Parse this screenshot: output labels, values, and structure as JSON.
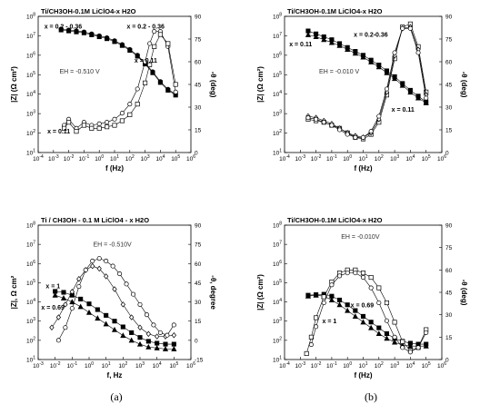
{
  "panel_labels": {
    "a": "(a)",
    "b": "(b)"
  },
  "chart_data": [
    {
      "id": "a-top",
      "type": "line",
      "title": "Ti/CH3OH-0.1M LiClO4-x H2O",
      "xlabel": "f (Hz)",
      "ylabel_left": "|Z| (Ω cm²)",
      "ylabel_right": "-θ (deg)",
      "x_scale": "log",
      "xlim_exp": [
        -4,
        6
      ],
      "ylim_left_exp": [
        1,
        8
      ],
      "ylim_right": [
        0,
        90
      ],
      "x_ticks": [
        "10-4",
        "10-3",
        "10-2",
        "10-1",
        "100",
        "101",
        "102",
        "103",
        "104",
        "105",
        "106"
      ],
      "y_left_ticks": [
        "101",
        "102",
        "103",
        "104",
        "105",
        "106",
        "107",
        "108"
      ],
      "y_right_ticks": [
        "0",
        "15",
        "30",
        "45",
        "60",
        "75",
        "90"
      ],
      "annotations": [
        "x = 0.2 - 0.36",
        "x = 0.2 - 0.36",
        "x = 0.11",
        "x = 0.11",
        "EH = -0.510 V"
      ],
      "series": [
        {
          "axis": "left",
          "marker": "square-filled",
          "x_exp": [
            -2.5,
            -2,
            -1.5,
            -1,
            -0.5,
            0,
            0.5,
            1,
            1.5,
            2,
            2.5,
            3,
            3.5,
            4,
            4.5,
            5
          ],
          "y_exp": [
            7.3,
            7.25,
            7.2,
            7.15,
            7.05,
            6.95,
            6.85,
            6.7,
            6.5,
            6.25,
            5.95,
            5.55,
            5.1,
            4.6,
            4.2,
            3.95
          ]
        },
        {
          "axis": "left",
          "marker": "circle-filled",
          "x_exp": [
            -2.5,
            -2,
            -1.5,
            -1,
            -0.5,
            0,
            0.5,
            1,
            1.5,
            2,
            2.5,
            3,
            3.5,
            4,
            4.5,
            5
          ],
          "y_exp": [
            7.35,
            7.3,
            7.25,
            7.2,
            7.1,
            7.0,
            6.9,
            6.75,
            6.55,
            6.3,
            6.0,
            5.6,
            5.15,
            4.65,
            4.25,
            4.0
          ]
        },
        {
          "axis": "right",
          "marker": "circle-open",
          "x": [
            -2.3,
            -2,
            -1.5,
            -1,
            -0.5,
            0,
            0.5,
            1,
            1.5,
            2,
            2.5,
            3,
            3.3,
            3.6,
            4,
            4.5,
            5
          ],
          "y": [
            18,
            22,
            16,
            20,
            18,
            19,
            20,
            22,
            26,
            32,
            42,
            60,
            72,
            80,
            80,
            70,
            40
          ]
        },
        {
          "axis": "right",
          "marker": "square-open",
          "x": [
            -2.3,
            -2,
            -1.5,
            -1,
            -0.5,
            0,
            0.5,
            1,
            1.5,
            2,
            2.5,
            3,
            3.3,
            3.6,
            4,
            4.5,
            5
          ],
          "y": [
            16,
            20,
            14,
            18,
            16,
            16,
            17,
            18,
            21,
            25,
            32,
            46,
            58,
            70,
            78,
            72,
            45
          ]
        }
      ]
    },
    {
      "id": "b-top",
      "type": "line",
      "title": "Ti/CH3OH-0.1M LiClO4-x H2O",
      "xlabel": "f (Hz)",
      "ylabel_left": "|Z| (Ω cm²)",
      "ylabel_right": "-θ (deg)",
      "x_scale": "log",
      "xlim_exp": [
        -4,
        6
      ],
      "ylim_left_exp": [
        1,
        8
      ],
      "ylim_right": [
        0,
        90
      ],
      "x_ticks": [
        "10-4",
        "10-3",
        "10-2",
        "10-1",
        "100",
        "101",
        "102",
        "103",
        "104",
        "105",
        "106"
      ],
      "y_left_ticks": [
        "101",
        "102",
        "103",
        "104",
        "105",
        "106",
        "107",
        "108"
      ],
      "y_right_ticks": [
        "0",
        "15",
        "30",
        "45",
        "60",
        "75",
        "90"
      ],
      "annotations": [
        "x = 0.2-0.36",
        "x = 0.11",
        "x = 0.11",
        "EH = -0.010 V"
      ],
      "series": [
        {
          "axis": "left",
          "marker": "triangle-filled",
          "x_exp": [
            -2.5,
            -2,
            -1.5,
            -1,
            -0.5,
            0,
            0.5,
            1,
            1.5,
            2,
            2.5,
            3,
            3.5,
            4,
            4.5,
            5
          ],
          "y_exp": [
            7.05,
            6.95,
            6.8,
            6.65,
            6.5,
            6.3,
            6.1,
            5.9,
            5.65,
            5.4,
            5.1,
            4.8,
            4.45,
            4.1,
            3.8,
            3.55
          ]
        },
        {
          "axis": "left",
          "marker": "square-filled",
          "x_exp": [
            -2.5,
            -2,
            -1.5,
            -1,
            -0.5,
            0,
            0.5,
            1,
            1.5,
            2,
            2.5,
            3,
            3.5,
            4,
            4.5,
            5
          ],
          "y_exp": [
            7.25,
            7.1,
            6.95,
            6.8,
            6.6,
            6.4,
            6.2,
            6.0,
            5.75,
            5.5,
            5.2,
            4.9,
            4.55,
            4.2,
            3.9,
            3.6
          ]
        },
        {
          "axis": "right",
          "marker": "square-open",
          "x": [
            -2.5,
            -2,
            -1.5,
            -1,
            -0.5,
            0,
            0.5,
            1,
            1.5,
            2,
            2.5,
            3,
            3.5,
            4,
            4.5,
            5
          ],
          "y": [
            22,
            21,
            20,
            18,
            16,
            13,
            10,
            9,
            12,
            20,
            38,
            62,
            83,
            85,
            70,
            40
          ]
        },
        {
          "axis": "right",
          "marker": "diamond-open",
          "x": [
            -2.5,
            -2,
            -1.5,
            -1,
            -0.5,
            0,
            0.5,
            1,
            1.5,
            2,
            2.5,
            3,
            3.5,
            4,
            4.5,
            5
          ],
          "y": [
            24,
            23,
            21,
            19,
            16,
            13,
            11,
            10,
            13,
            22,
            40,
            64,
            82,
            83,
            68,
            38
          ]
        },
        {
          "axis": "right",
          "marker": "circle-open",
          "x": [
            -2.5,
            -2,
            -1.5,
            -1,
            -0.5,
            0,
            0.5,
            1,
            1.5,
            2,
            2.5,
            3,
            3.5,
            4,
            4.5,
            5
          ],
          "y": [
            23,
            22,
            20,
            18,
            15,
            12,
            10,
            10,
            14,
            24,
            42,
            66,
            82,
            82,
            66,
            36
          ]
        }
      ]
    },
    {
      "id": "a-bottom",
      "type": "line",
      "title": "Ti / CH3OH - 0.1 M LiClO4 - x H2O",
      "xlabel": "f, Hz",
      "ylabel_left": "|Z|, Ω cm²",
      "ylabel_right": "-θ, degree",
      "x_scale": "log",
      "xlim_exp": [
        -3,
        6
      ],
      "ylim_left_exp": [
        1,
        8
      ],
      "ylim_right": [
        -15,
        90
      ],
      "x_ticks": [
        "10-3",
        "10-2",
        "10-1",
        "100",
        "101",
        "102",
        "103",
        "104",
        "105",
        "106"
      ],
      "y_left_ticks": [
        "101",
        "102",
        "103",
        "104",
        "105",
        "106",
        "107",
        "108"
      ],
      "y_right_ticks": [
        "-15",
        "0",
        "15",
        "30",
        "45",
        "60",
        "75",
        "90"
      ],
      "annotations": [
        "EH = -0.510V",
        "x = 1",
        "x = 0.69"
      ],
      "series": [
        {
          "axis": "left",
          "marker": "square-filled",
          "x_exp": [
            -2,
            -1.5,
            -1,
            -0.5,
            0,
            0.5,
            1,
            1.5,
            2,
            2.5,
            3,
            3.5,
            4,
            4.5,
            5
          ],
          "y_exp": [
            4.55,
            4.5,
            4.35,
            4.15,
            3.9,
            3.6,
            3.3,
            3.0,
            2.7,
            2.4,
            2.15,
            1.95,
            1.85,
            1.8,
            1.8
          ]
        },
        {
          "axis": "left",
          "marker": "triangle-filled",
          "x_exp": [
            -2,
            -1.5,
            -1,
            -0.5,
            0,
            0.5,
            1,
            1.5,
            2,
            2.5,
            3,
            3.5,
            4,
            4.5,
            5
          ],
          "y_exp": [
            4.35,
            4.2,
            4.0,
            3.75,
            3.45,
            3.15,
            2.85,
            2.55,
            2.25,
            2.0,
            1.8,
            1.65,
            1.6,
            1.55,
            1.55
          ]
        },
        {
          "axis": "right",
          "marker": "diamond-open",
          "x": [
            -2.2,
            -1.8,
            -1.4,
            -1,
            -0.6,
            -0.2,
            0.2,
            0.6,
            1,
            1.5,
            2,
            2.5,
            3,
            3.5,
            4,
            4.5,
            5
          ],
          "y": [
            10,
            18,
            28,
            38,
            48,
            55,
            58,
            56,
            50,
            40,
            28,
            18,
            10,
            5,
            3,
            3,
            4
          ]
        },
        {
          "axis": "right",
          "marker": "circle-open",
          "x": [
            -1.8,
            -1.4,
            -1,
            -0.6,
            -0.2,
            0.2,
            0.6,
            1,
            1.4,
            1.8,
            2.2,
            2.6,
            3,
            3.4,
            3.8,
            4.2,
            4.6,
            5
          ],
          "y": [
            0,
            10,
            25,
            42,
            55,
            62,
            64,
            62,
            58,
            52,
            44,
            36,
            28,
            20,
            12,
            6,
            4,
            12
          ]
        }
      ]
    },
    {
      "id": "b-bottom",
      "type": "line",
      "title": "Ti/CH3OH-0.1M LiClO4-x H2O",
      "xlabel": "f (Hz)",
      "ylabel_left": "|Z| (Ω cm²)",
      "ylabel_right": "-θ (deg)",
      "x_scale": "log",
      "xlim_exp": [
        -4,
        6
      ],
      "ylim_left_exp": [
        1,
        8
      ],
      "ylim_right": [
        0,
        90
      ],
      "x_ticks": [
        "10-4",
        "10-3",
        "10-2",
        "10-1",
        "100",
        "101",
        "102",
        "103",
        "104",
        "105",
        "106"
      ],
      "y_left_ticks": [
        "101",
        "102",
        "103",
        "104",
        "105",
        "106",
        "107",
        "108"
      ],
      "y_right_ticks": [
        "0",
        "15",
        "30",
        "45",
        "60",
        "75",
        "90"
      ],
      "annotations": [
        "EH = -0.010V",
        "x = 0.69",
        "x = 1"
      ],
      "series": [
        {
          "axis": "left",
          "marker": "square-filled",
          "x_exp": [
            -2.5,
            -2,
            -1.5,
            -1,
            -0.5,
            0,
            0.5,
            1,
            1.5,
            2,
            2.5,
            3,
            3.5,
            4,
            4.5,
            5
          ],
          "y_exp": [
            4.35,
            4.38,
            4.4,
            4.3,
            4.1,
            3.85,
            3.55,
            3.25,
            2.95,
            2.65,
            2.35,
            2.1,
            1.95,
            1.85,
            1.8,
            1.8
          ]
        },
        {
          "axis": "left",
          "marker": "triangle-filled",
          "x_exp": [
            -2.5,
            -2,
            -1.5,
            -1,
            -0.5,
            0,
            0.5,
            1,
            1.5,
            2,
            2.5,
            3,
            3.5,
            4,
            4.5,
            5
          ],
          "y_exp": [
            4.3,
            4.35,
            4.3,
            4.1,
            3.85,
            3.55,
            3.25,
            2.95,
            2.65,
            2.35,
            2.1,
            1.9,
            1.75,
            1.7,
            1.7,
            1.7
          ]
        },
        {
          "axis": "right",
          "marker": "square-open",
          "x": [
            -2.6,
            -2.3,
            -2,
            -1.5,
            -1,
            -0.5,
            0,
            0.5,
            1,
            1.5,
            2,
            2.5,
            3,
            3.5,
            4,
            4.5,
            5
          ],
          "y": [
            4,
            15,
            28,
            42,
            52,
            58,
            60,
            60,
            58,
            55,
            48,
            38,
            25,
            12,
            6,
            8,
            20
          ]
        },
        {
          "axis": "right",
          "marker": "circle-open",
          "x": [
            -2.3,
            -2,
            -1.5,
            -1,
            -0.5,
            0,
            0.5,
            1,
            1.5,
            2,
            2.5,
            3,
            3.5,
            4,
            4.5,
            5
          ],
          "y": [
            10,
            22,
            38,
            50,
            56,
            58,
            58,
            55,
            48,
            38,
            26,
            15,
            8,
            5,
            8,
            18
          ]
        }
      ]
    }
  ]
}
